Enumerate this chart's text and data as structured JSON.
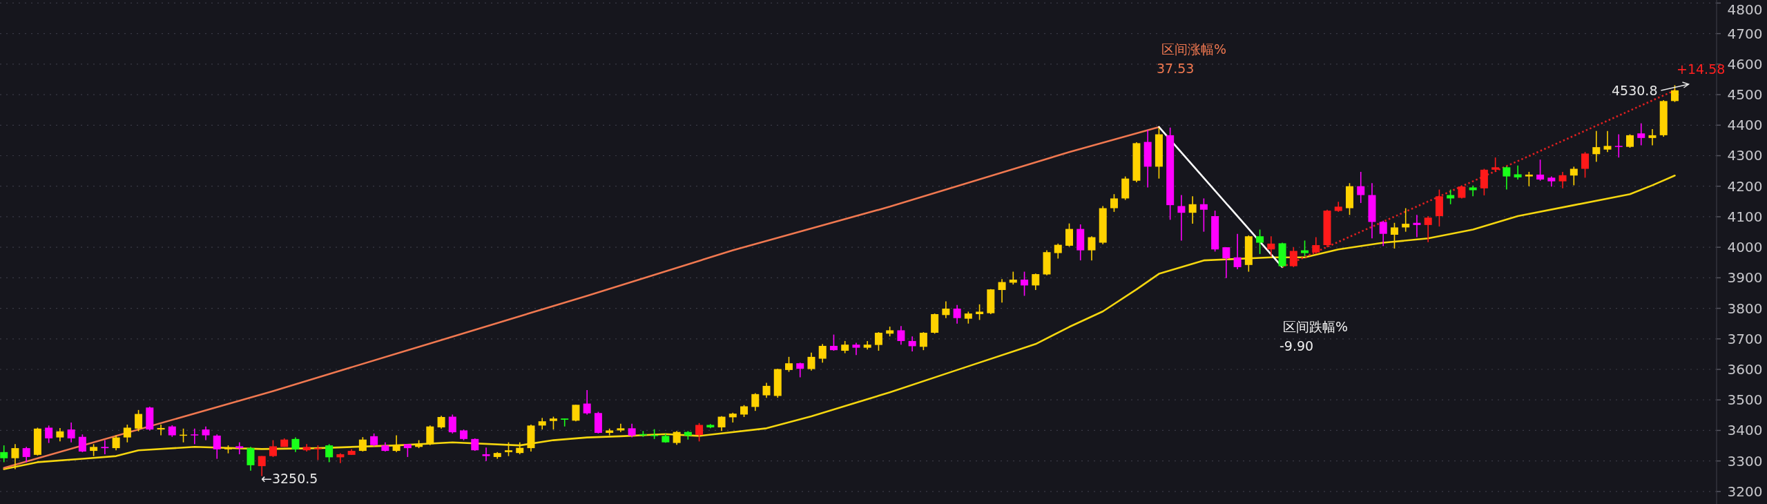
{
  "chart_data": {
    "type": "candlestick",
    "categories": [
      null,
      null,
      null,
      null,
      null,
      null,
      null,
      null,
      null,
      null,
      null,
      null,
      null,
      null,
      null,
      null,
      null,
      null,
      null,
      null,
      null,
      null,
      null,
      null,
      null,
      null,
      null,
      null,
      null,
      null,
      null,
      null,
      null,
      null,
      null,
      null,
      null,
      null,
      null,
      null,
      null,
      null,
      null,
      null,
      null,
      null,
      null,
      null,
      null,
      null,
      null,
      null,
      null,
      null,
      null,
      null,
      null,
      null,
      null,
      null,
      null,
      null,
      null,
      null,
      null,
      null,
      null,
      null,
      null,
      null,
      null,
      null,
      null,
      null,
      null,
      null,
      null,
      null,
      null,
      null,
      null,
      null,
      null,
      null,
      null,
      null,
      null,
      null,
      null,
      null,
      null,
      null,
      null,
      null,
      null,
      null,
      null,
      null,
      null,
      null,
      null,
      null,
      null,
      null,
      null,
      null,
      null,
      null,
      null,
      null,
      null,
      null,
      null,
      null,
      null,
      null,
      null,
      null,
      null,
      null,
      null,
      null,
      null,
      null,
      null,
      null,
      null,
      null,
      null,
      null,
      null,
      null,
      null,
      null,
      null,
      null,
      null,
      null,
      null,
      null,
      null,
      null,
      null,
      null,
      null,
      null,
      null,
      null,
      null,
      null
    ],
    "ohlc": [
      [
        3329,
        3351,
        3296,
        3309
      ],
      [
        3309,
        3355,
        3273,
        3342
      ],
      [
        3342,
        3346,
        3296,
        3313
      ],
      [
        3320,
        3409,
        3318,
        3406
      ],
      [
        3409,
        3416,
        3359,
        3374
      ],
      [
        3377,
        3408,
        3364,
        3397
      ],
      [
        3403,
        3426,
        3361,
        3374
      ],
      [
        3379,
        3387,
        3329,
        3331
      ],
      [
        3333,
        3355,
        3316,
        3346
      ],
      [
        3346,
        3368,
        3322,
        3342
      ],
      [
        3342,
        3384,
        3335,
        3377
      ],
      [
        3377,
        3419,
        3361,
        3409
      ],
      [
        3406,
        3467,
        3397,
        3454
      ],
      [
        3475,
        3478,
        3400,
        3403
      ],
      [
        3403,
        3419,
        3384,
        3408
      ],
      [
        3413,
        3417,
        3379,
        3384
      ],
      [
        3383,
        3406,
        3361,
        3386
      ],
      [
        3387,
        3406,
        3355,
        3384
      ],
      [
        3403,
        3413,
        3368,
        3384
      ],
      [
        3383,
        3387,
        3307,
        3338
      ],
      [
        3338,
        3351,
        3325,
        3344
      ],
      [
        3348,
        3361,
        3322,
        3342
      ],
      [
        3342,
        3346,
        3268,
        3286
      ],
      [
        3283,
        3316,
        3250.5,
        3316
      ],
      [
        3316,
        3368,
        3313,
        3348
      ],
      [
        3346,
        3374,
        3346,
        3370
      ],
      [
        3372,
        3377,
        3329,
        3338
      ],
      [
        3335,
        3355,
        3331,
        3346
      ],
      [
        3339,
        3351,
        3303,
        3342
      ],
      [
        3351,
        3355,
        3296,
        3312
      ],
      [
        3312,
        3325,
        3293,
        3322
      ],
      [
        3320,
        3338,
        3320,
        3333
      ],
      [
        3333,
        3378,
        3331,
        3370
      ],
      [
        3381,
        3390,
        3348,
        3352
      ],
      [
        3351,
        3361,
        3331,
        3333
      ],
      [
        3333,
        3384,
        3329,
        3353
      ],
      [
        3355,
        3355,
        3313,
        3342
      ],
      [
        3346,
        3368,
        3342,
        3355
      ],
      [
        3355,
        3416,
        3352,
        3413
      ],
      [
        3410,
        3448,
        3406,
        3444
      ],
      [
        3445,
        3452,
        3390,
        3394
      ],
      [
        3400,
        3403,
        3368,
        3372
      ],
      [
        3372,
        3374,
        3333,
        3335
      ],
      [
        3322,
        3344,
        3300,
        3316
      ],
      [
        3313,
        3329,
        3307,
        3326
      ],
      [
        3329,
        3361,
        3316,
        3335
      ],
      [
        3326,
        3361,
        3322,
        3343
      ],
      [
        3342,
        3419,
        3331,
        3416
      ],
      [
        3416,
        3441,
        3403,
        3430
      ],
      [
        3431,
        3445,
        3403,
        3439
      ],
      [
        3439,
        3439,
        3413,
        3435
      ],
      [
        3432,
        3484,
        3430,
        3484
      ],
      [
        3488,
        3532,
        3452,
        3456
      ],
      [
        3457,
        3461,
        3390,
        3392
      ],
      [
        3392,
        3406,
        3384,
        3400
      ],
      [
        3400,
        3422,
        3395,
        3407
      ],
      [
        3407,
        3422,
        3377,
        3383
      ],
      [
        3388,
        3398,
        3379,
        3384
      ],
      [
        3385,
        3404,
        3372,
        3382
      ],
      [
        3382,
        3389,
        3360,
        3361
      ],
      [
        3359,
        3398,
        3353,
        3395
      ],
      [
        3395,
        3398,
        3370,
        3383
      ],
      [
        3385,
        3424,
        3364,
        3418
      ],
      [
        3418,
        3421,
        3407,
        3410
      ],
      [
        3410,
        3447,
        3398,
        3445
      ],
      [
        3443,
        3458,
        3426,
        3455
      ],
      [
        3452,
        3483,
        3444,
        3479
      ],
      [
        3477,
        3522,
        3464,
        3519
      ],
      [
        3515,
        3556,
        3507,
        3546
      ],
      [
        3513,
        3602,
        3507,
        3601
      ],
      [
        3598,
        3641,
        3592,
        3620
      ],
      [
        3620,
        3622,
        3574,
        3602
      ],
      [
        3601,
        3655,
        3596,
        3641
      ],
      [
        3635,
        3683,
        3622,
        3677
      ],
      [
        3677,
        3714,
        3661,
        3663
      ],
      [
        3661,
        3693,
        3653,
        3681
      ],
      [
        3681,
        3687,
        3647,
        3671
      ],
      [
        3671,
        3693,
        3665,
        3681
      ],
      [
        3680,
        3722,
        3661,
        3720
      ],
      [
        3717,
        3740,
        3708,
        3728
      ],
      [
        3728,
        3742,
        3681,
        3693
      ],
      [
        3693,
        3708,
        3659,
        3676
      ],
      [
        3674,
        3722,
        3663,
        3720
      ],
      [
        3720,
        3783,
        3717,
        3781
      ],
      [
        3778,
        3823,
        3768,
        3799
      ],
      [
        3799,
        3811,
        3750,
        3768
      ],
      [
        3766,
        3789,
        3750,
        3783
      ],
      [
        3781,
        3813,
        3762,
        3789
      ],
      [
        3784,
        3863,
        3781,
        3862
      ],
      [
        3860,
        3896,
        3819,
        3886
      ],
      [
        3884,
        3920,
        3878,
        3894
      ],
      [
        3894,
        3920,
        3841,
        3875
      ],
      [
        3875,
        3914,
        3860,
        3912
      ],
      [
        3911,
        3990,
        3908,
        3984
      ],
      [
        3981,
        4012,
        3963,
        4008
      ],
      [
        4005,
        4078,
        4002,
        4060
      ],
      [
        4060,
        4075,
        3957,
        3990
      ],
      [
        3990,
        4036,
        3957,
        4033
      ],
      [
        4015,
        4135,
        4010,
        4128
      ],
      [
        4128,
        4174,
        4116,
        4160
      ],
      [
        4160,
        4232,
        4155,
        4225
      ],
      [
        4218,
        4344,
        4213,
        4341
      ],
      [
        4345,
        4384,
        4196,
        4264
      ],
      [
        4264,
        4392,
        4225,
        4370
      ],
      [
        4367,
        4392,
        4090,
        4138
      ],
      [
        4135,
        4171,
        4022,
        4113
      ],
      [
        4113,
        4167,
        4077,
        4141
      ],
      [
        4141,
        4160,
        4051,
        4123
      ],
      [
        4102,
        4120,
        3986,
        3993
      ],
      [
        4000,
        4000,
        3899,
        3964
      ],
      [
        3967,
        4044,
        3928,
        3935
      ],
      [
        3942,
        4039,
        3920,
        4036
      ],
      [
        4036,
        4058,
        3978,
        4015
      ],
      [
        3993,
        4036,
        3971,
        4012
      ],
      [
        4013,
        4015,
        3935,
        3938
      ],
      [
        3938,
        4000,
        3935,
        3988
      ],
      [
        3990,
        4022,
        3971,
        3981
      ],
      [
        3983,
        4033,
        3978,
        4007
      ],
      [
        4007,
        4123,
        4000,
        4120
      ],
      [
        4119,
        4149,
        4116,
        4133
      ],
      [
        4128,
        4210,
        4106,
        4200
      ],
      [
        4200,
        4247,
        4145,
        4171
      ],
      [
        4171,
        4210,
        4029,
        4083
      ],
      [
        4083,
        4087,
        4004,
        4044
      ],
      [
        4041,
        4080,
        3996,
        4065
      ],
      [
        4065,
        4128,
        4051,
        4077
      ],
      [
        4080,
        4106,
        4033,
        4073
      ],
      [
        4073,
        4102,
        4017,
        4097
      ],
      [
        4102,
        4189,
        4068,
        4167
      ],
      [
        4171,
        4189,
        4141,
        4160
      ],
      [
        4162,
        4202,
        4160,
        4199
      ],
      [
        4196,
        4202,
        4167,
        4187
      ],
      [
        4193,
        4257,
        4170,
        4254
      ],
      [
        4254,
        4294,
        4247,
        4262
      ],
      [
        4262,
        4265,
        4189,
        4232
      ],
      [
        4239,
        4268,
        4222,
        4229
      ],
      [
        4232,
        4247,
        4200,
        4238
      ],
      [
        4238,
        4287,
        4218,
        4222
      ],
      [
        4228,
        4232,
        4199,
        4216
      ],
      [
        4216,
        4247,
        4193,
        4236
      ],
      [
        4235,
        4264,
        4203,
        4257
      ],
      [
        4257,
        4312,
        4228,
        4307
      ],
      [
        4305,
        4381,
        4280,
        4328
      ],
      [
        4320,
        4381,
        4312,
        4332
      ],
      [
        4332,
        4370,
        4294,
        4329
      ],
      [
        4329,
        4370,
        4326,
        4367
      ],
      [
        4373,
        4406,
        4334,
        4358
      ],
      [
        4358,
        4387,
        4334,
        4367
      ],
      [
        4367,
        4482,
        4362,
        4479
      ],
      [
        4479,
        4530.8,
        4476,
        4514
      ]
    ],
    "colors": [
      "#1aff1a",
      "#ffd200",
      "#ff00ff",
      "#ffd200",
      "#ff00ff",
      "#ffd200",
      "#ff00ff",
      "#ff00ff",
      "#ffd200",
      "#ff00ff",
      "#ffd200",
      "#ffd200",
      "#ffd200",
      "#ff00ff",
      "#ffd200",
      "#ff00ff",
      "#ffd200",
      "#ff00ff",
      "#ff00ff",
      "#ff00ff",
      "#ffd200",
      "#ff00ff",
      "#1aff1a",
      "#ff1a1a",
      "#ff1a1a",
      "#ff1a1a",
      "#1aff1a",
      "#ff1a1a",
      "#ff1a1a",
      "#1aff1a",
      "#ff1a1a",
      "#ff1a1a",
      "#ffd200",
      "#ff00ff",
      "#ff00ff",
      "#ffd200",
      "#ff00ff",
      "#ffd200",
      "#ffd200",
      "#ffd200",
      "#ff00ff",
      "#ff00ff",
      "#ff00ff",
      "#ff00ff",
      "#ffd200",
      "#ffd200",
      "#ffd200",
      "#ffd200",
      "#ffd200",
      "#ffd200",
      "#1aff1a",
      "#ffd200",
      "#ff00ff",
      "#ff00ff",
      "#ffd200",
      "#ffd200",
      "#ff00ff",
      "#1aff1a",
      "#1aff1a",
      "#1aff1a",
      "#ffd200",
      "#1aff1a",
      "#ff1a1a",
      "#1aff1a",
      "#ffd200",
      "#ffd200",
      "#ffd200",
      "#ffd200",
      "#ffd200",
      "#ffd200",
      "#ffd200",
      "#ff00ff",
      "#ffd200",
      "#ffd200",
      "#ff00ff",
      "#ffd200",
      "#ff00ff",
      "#ffd200",
      "#ffd200",
      "#ffd200",
      "#ff00ff",
      "#ff00ff",
      "#ffd200",
      "#ffd200",
      "#ffd200",
      "#ff00ff",
      "#ffd200",
      "#ffd200",
      "#ffd200",
      "#ffd200",
      "#ffd200",
      "#ff00ff",
      "#ffd200",
      "#ffd200",
      "#ffd200",
      "#ffd200",
      "#ff00ff",
      "#ffd200",
      "#ffd200",
      "#ffd200",
      "#ffd200",
      "#ffd200",
      "#ff00ff",
      "#ffd200",
      "#ff00ff",
      "#ff00ff",
      "#ffd200",
      "#ff00ff",
      "#ff00ff",
      "#ff00ff",
      "#ff00ff",
      "#ffd200",
      "#1aff1a",
      "#ff1a1a",
      "#1aff1a",
      "#ff1a1a",
      "#1aff1a",
      "#ff1a1a",
      "#ff1a1a",
      "#ff1a1a",
      "#ffd200",
      "#ff00ff",
      "#ff00ff",
      "#ff00ff",
      "#ffd200",
      "#ffd200",
      "#ff00ff",
      "#ff1a1a",
      "#ff1a1a",
      "#1aff1a",
      "#ff1a1a",
      "#1aff1a",
      "#ff1a1a",
      "#ff1a1a",
      "#1aff1a",
      "#1aff1a",
      "#ffd200",
      "#ff00ff",
      "#ff00ff",
      "#ff1a1a",
      "#ffd200",
      "#ff1a1a",
      "#ffd200",
      "#ffd200",
      "#ff00ff",
      "#ffd200",
      "#ff00ff",
      "#ffd200",
      "#ffd200",
      "#ffd200"
    ],
    "ylim": [
      3159,
      4810
    ],
    "yticks": [
      3200,
      3300,
      3400,
      3500,
      3600,
      3700,
      3800,
      3900,
      4000,
      4100,
      4200,
      4300,
      4400,
      4500,
      4600,
      4700,
      4800
    ],
    "grid": "y",
    "tick_labels": "y",
    "series": [
      {
        "type": "line",
        "color": "#f5d60f",
        "values": [
          3273,
          null,
          null,
          3296,
          null,
          null,
          null,
          3307,
          null,
          null,
          3316,
          null,
          3335,
          null,
          null,
          null,
          null,
          3346,
          null,
          null,
          null,
          null,
          null,
          3339,
          null,
          null,
          null,
          null,
          3342,
          null,
          null,
          null,
          null,
          null,
          null,
          3351,
          null,
          null,
          null,
          null,
          3361,
          null,
          null,
          null,
          null,
          null,
          3351,
          null,
          null,
          3368,
          null,
          null,
          3377,
          null,
          null,
          3381,
          null,
          null,
          null,
          3388,
          null,
          null,
          3382,
          null,
          null,
          null,
          null,
          null,
          3407,
          null,
          null,
          null,
          3446,
          null,
          null,
          null,
          null,
          null,
          null,
          3525,
          null,
          null,
          null,
          null,
          null,
          3598,
          null,
          null,
          null,
          null,
          null,
          null,
          3683,
          null,
          null,
          3739,
          null,
          null,
          3790,
          null,
          null,
          3862,
          null,
          3913,
          null,
          null,
          null,
          3957,
          null,
          null,
          null,
          null,
          null,
          3967,
          null,
          null,
          3967,
          null,
          null,
          3993,
          null,
          null,
          null,
          4015,
          null,
          null,
          null,
          4029,
          null,
          null,
          null,
          4058,
          null,
          null,
          null,
          4102,
          null,
          null,
          null,
          null,
          4138,
          null,
          null,
          null,
          null,
          4174,
          null,
          4203,
          null,
          4235
        ]
      },
      {
        "type": "line",
        "color": "#f07850",
        "values": [
          3277,
          null,
          null,
          null,
          null,
          null,
          null,
          null,
          null,
          null,
          null,
          null,
          null,
          null,
          null,
          null,
          null,
          null,
          null,
          null,
          null,
          null,
          null,
          null,
          3529,
          null,
          null,
          null,
          null,
          null,
          null,
          null,
          null,
          null,
          null,
          null,
          null,
          null,
          3685,
          null,
          null,
          null,
          null,
          null,
          null,
          null,
          null,
          null,
          null,
          null,
          null,
          null,
          3841,
          null,
          null,
          null,
          null,
          null,
          null,
          null,
          null,
          null,
          null,
          null,
          null,
          3990,
          null,
          null,
          null,
          null,
          null,
          null,
          null,
          null,
          null,
          null,
          null,
          null,
          null,
          4133,
          null,
          null,
          null,
          null,
          null,
          null,
          null,
          null,
          null,
          null,
          null,
          null,
          null,
          null,
          null,
          4312,
          null,
          null,
          null,
          null,
          null,
          null,
          null,
          4394,
          null,
          null,
          null,
          null,
          null,
          null,
          null,
          null,
          null,
          null,
          null,
          null,
          null,
          null,
          null,
          null,
          null,
          null,
          null,
          null,
          null,
          null,
          null,
          null,
          null,
          null,
          null,
          null,
          null,
          null,
          null,
          null,
          null,
          null,
          null,
          null,
          null,
          null,
          null,
          null,
          null,
          null,
          null,
          null,
          null,
          null
        ]
      },
      {
        "type": "line",
        "color": "#ffffff",
        "values": [
          null,
          null,
          null,
          null,
          null,
          null,
          null,
          null,
          null,
          null,
          null,
          null,
          null,
          null,
          null,
          null,
          null,
          null,
          null,
          null,
          null,
          null,
          null,
          null,
          null,
          null,
          null,
          null,
          null,
          null,
          null,
          null,
          null,
          null,
          null,
          null,
          null,
          null,
          null,
          null,
          null,
          null,
          null,
          null,
          null,
          null,
          null,
          null,
          null,
          null,
          null,
          null,
          null,
          null,
          null,
          null,
          null,
          null,
          null,
          null,
          null,
          null,
          null,
          null,
          null,
          null,
          null,
          null,
          null,
          null,
          null,
          null,
          null,
          null,
          null,
          null,
          null,
          null,
          null,
          null,
          null,
          null,
          null,
          null,
          null,
          null,
          null,
          null,
          null,
          null,
          null,
          null,
          null,
          null,
          null,
          null,
          null,
          null,
          null,
          null,
          null,
          null,
          null,
          4394,
          null,
          null,
          null,
          null,
          null,
          null,
          null,
          null,
          null,
          null,
          3935,
          null,
          null,
          null,
          null,
          null,
          null,
          null,
          null,
          null,
          null,
          null,
          null,
          null,
          null,
          null,
          null,
          null,
          null,
          null,
          null,
          null,
          null,
          null,
          null,
          null,
          null,
          null,
          null,
          null,
          null,
          null,
          null,
          null,
          null,
          null
        ]
      },
      {
        "type": "line",
        "color": "#e02020",
        "line_style": "dotted",
        "values": [
          null,
          null,
          null,
          null,
          null,
          null,
          null,
          null,
          null,
          null,
          null,
          null,
          null,
          null,
          null,
          null,
          null,
          null,
          null,
          null,
          null,
          null,
          null,
          null,
          null,
          null,
          null,
          null,
          null,
          null,
          null,
          null,
          null,
          null,
          null,
          null,
          null,
          null,
          null,
          null,
          null,
          null,
          null,
          null,
          null,
          null,
          null,
          null,
          null,
          null,
          null,
          null,
          null,
          null,
          null,
          null,
          null,
          null,
          null,
          null,
          null,
          null,
          null,
          null,
          null,
          null,
          null,
          null,
          null,
          null,
          null,
          null,
          null,
          null,
          null,
          null,
          null,
          null,
          null,
          null,
          null,
          null,
          null,
          null,
          null,
          null,
          null,
          null,
          null,
          null,
          null,
          null,
          null,
          null,
          null,
          null,
          null,
          null,
          null,
          null,
          null,
          null,
          null,
          null,
          null,
          null,
          null,
          null,
          null,
          null,
          null,
          null,
          null,
          null,
          3935,
          null,
          null,
          null,
          null,
          null,
          null,
          null,
          null,
          null,
          null,
          null,
          null,
          null,
          null,
          null,
          null,
          null,
          null,
          null,
          null,
          null,
          null,
          null,
          null,
          null,
          null,
          null,
          null,
          null,
          null,
          null,
          null,
          null,
          null,
          4514
        ]
      }
    ],
    "annotations": [
      "区间涨幅%",
      "37.53",
      "区间跌幅%",
      "-9.90",
      "+14.58",
      "4530.8",
      "←3250.5"
    ]
  }
}
